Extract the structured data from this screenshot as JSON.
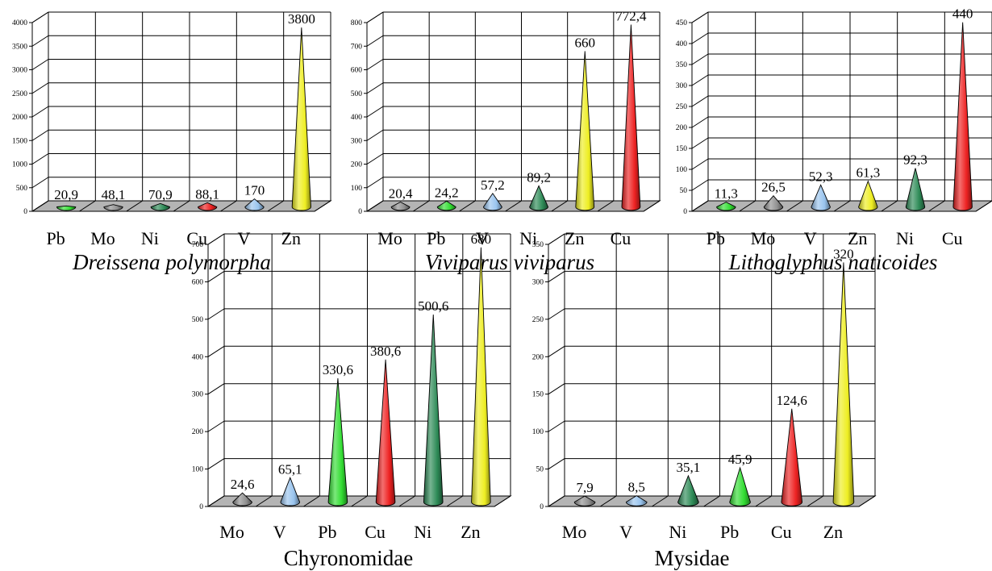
{
  "chart_data": [
    {
      "type": "bar",
      "title": "Dreissena polymorpha",
      "title_italic": true,
      "categories": [
        "Pb",
        "Mo",
        "Ni",
        "Cu",
        "V",
        "Zn"
      ],
      "value_labels": [
        "20,9",
        "48,1",
        "70,9",
        "88,1",
        "170",
        "3800"
      ],
      "values": [
        20.9,
        48.1,
        70.9,
        88.1,
        170,
        3800
      ],
      "ylim": [
        0,
        4000
      ],
      "yticks": [
        "0",
        "500",
        "1000",
        "1500",
        "2000",
        "2500",
        "3000",
        "3500",
        "4000"
      ],
      "colors": [
        "#33dd33",
        "#909090",
        "#2e8b57",
        "#ee2222",
        "#99c4ee",
        "#eeee22"
      ],
      "grid": true
    },
    {
      "type": "bar",
      "title": "Viviparus viviparus",
      "title_italic": true,
      "categories": [
        "Mo",
        "Pb",
        "V",
        "Ni",
        "Zn",
        "Cu"
      ],
      "value_labels": [
        "20,4",
        "24,2",
        "57,2",
        "89,2",
        "660",
        "772,4"
      ],
      "values": [
        20.4,
        24.2,
        57.2,
        89.2,
        660,
        772.4
      ],
      "ylim": [
        0,
        800
      ],
      "yticks": [
        "0",
        "100",
        "200",
        "300",
        "400",
        "500",
        "600",
        "700",
        "800"
      ],
      "colors": [
        "#909090",
        "#33dd33",
        "#99c4ee",
        "#2e8b57",
        "#eeee22",
        "#ee2222"
      ],
      "grid": true
    },
    {
      "type": "bar",
      "title": "Lithoglyphus naticoides",
      "title_italic": true,
      "categories": [
        "Pb",
        "Mo",
        "V",
        "Zn",
        "Ni",
        "Cu"
      ],
      "value_labels": [
        "11,3",
        "26,5",
        "52,3",
        "61,3",
        "92,3",
        "440"
      ],
      "values": [
        11.3,
        26.5,
        52.3,
        61.3,
        92.3,
        440
      ],
      "ylim": [
        0,
        450
      ],
      "yticks": [
        "0",
        "50",
        "100",
        "150",
        "200",
        "250",
        "300",
        "350",
        "400",
        "450"
      ],
      "colors": [
        "#33dd33",
        "#909090",
        "#99c4ee",
        "#eeee22",
        "#2e8b57",
        "#ee2222"
      ],
      "grid": true
    },
    {
      "type": "bar",
      "title": "Chyronomidae",
      "title_italic": false,
      "categories": [
        "Mo",
        "V",
        "Pb",
        "Cu",
        "Ni",
        "Zn"
      ],
      "value_labels": [
        "24,6",
        "65,1",
        "330,6",
        "380,6",
        "500,6",
        "680"
      ],
      "values": [
        24.6,
        65.1,
        330.6,
        380.6,
        500.6,
        680
      ],
      "ylim": [
        0,
        700
      ],
      "yticks": [
        "0",
        "100",
        "200",
        "300",
        "400",
        "500",
        "600",
        "700"
      ],
      "colors": [
        "#909090",
        "#99c4ee",
        "#33dd33",
        "#ee2222",
        "#2e8b57",
        "#eeee22"
      ],
      "grid": true
    },
    {
      "type": "bar",
      "title": "Mysidae",
      "title_italic": false,
      "categories": [
        "Mo",
        "V",
        "Ni",
        "Pb",
        "Cu",
        "Zn"
      ],
      "value_labels": [
        "7,9",
        "8,5",
        "35,1",
        "45,9",
        "124,6",
        "320"
      ],
      "values": [
        7.9,
        8.5,
        35.1,
        45.9,
        124.6,
        320
      ],
      "ylim": [
        0,
        350
      ],
      "yticks": [
        "0",
        "50",
        "100",
        "150",
        "200",
        "250",
        "300",
        "350"
      ],
      "colors": [
        "#909090",
        "#99c4ee",
        "#2e8b57",
        "#33dd33",
        "#ee2222",
        "#eeee22"
      ],
      "grid": true
    }
  ]
}
